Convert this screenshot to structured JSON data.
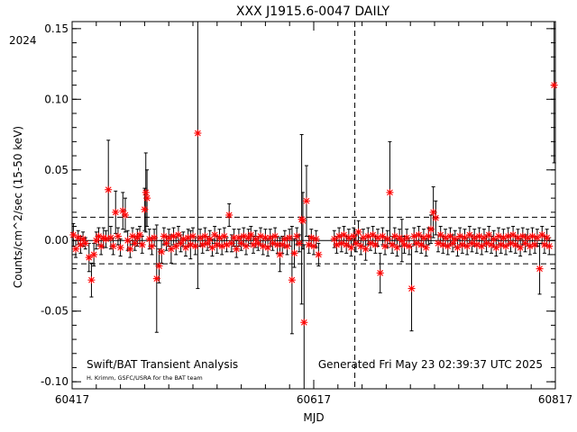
{
  "chart_data": {
    "type": "scatter",
    "title": "XXX J1915.6-0047 DAILY",
    "year_label": "2024",
    "xlabel": "MJD",
    "ylabel": "Counts/cm^2/sec (15-50 keV)",
    "xlim": [
      60417,
      60817
    ],
    "ylim": [
      -0.105,
      0.155
    ],
    "x_ticks": [
      60417,
      60617,
      60817
    ],
    "y_ticks": [
      -0.1,
      -0.05,
      0.0,
      0.05,
      0.1,
      0.15
    ],
    "y_tick_labels": [
      "-0.10",
      "-0.05",
      "0.00",
      "0.05",
      "0.10",
      "0.15"
    ],
    "reference_lines": {
      "zero": 0.0,
      "upper_dashed": 0.0165,
      "lower_dashed": -0.0165,
      "vertical_dashed_mjd": 60651
    },
    "footer_left": "Swift/BAT Transient Analysis",
    "footer_credit": "H. Krimm, GSFC/USRA for the BAT team",
    "footer_right": "Generated Fri May 23 02:39:37 UTC 2025",
    "grid": false,
    "legend": "none",
    "colors": {
      "marker": "#ff0000",
      "errorbar": "#000000",
      "axes": "#000000"
    },
    "series": [
      {
        "marker": "asterisk",
        "points": [
          [
            60418,
            0.004,
            0.008
          ],
          [
            60420,
            -0.006,
            0.006
          ],
          [
            60422,
            0.002,
            0.005
          ],
          [
            60424,
            -0.003,
            0.006
          ],
          [
            60426,
            0.001,
            0.005
          ],
          [
            60428,
            -0.002,
            0.004
          ],
          [
            60431,
            -0.012,
            0.01
          ],
          [
            60433,
            -0.028,
            0.012
          ],
          [
            60435,
            -0.01,
            0.008
          ],
          [
            60437,
            0.0,
            0.006
          ],
          [
            60439,
            0.003,
            0.006
          ],
          [
            60441,
            -0.004,
            0.006
          ],
          [
            60443,
            0.002,
            0.007
          ],
          [
            60445,
            0.001,
            0.006
          ],
          [
            60447,
            0.036,
            0.035
          ],
          [
            60449,
            0.002,
            0.008
          ],
          [
            60451,
            -0.004,
            0.006
          ],
          [
            60453,
            0.02,
            0.015
          ],
          [
            60455,
            0.003,
            0.006
          ],
          [
            60457,
            -0.005,
            0.006
          ],
          [
            60459,
            0.021,
            0.013
          ],
          [
            60461,
            0.018,
            0.012
          ],
          [
            60463,
            0.0,
            0.007
          ],
          [
            60465,
            -0.006,
            0.006
          ],
          [
            60467,
            0.003,
            0.006
          ],
          [
            60469,
            -0.002,
            0.005
          ],
          [
            60471,
            0.002,
            0.006
          ],
          [
            60473,
            0.004,
            0.006
          ],
          [
            60475,
            -0.003,
            0.006
          ],
          [
            60477,
            0.022,
            0.015
          ],
          [
            60478,
            0.034,
            0.028
          ],
          [
            60479,
            0.03,
            0.02
          ],
          [
            60481,
            0.001,
            0.007
          ],
          [
            60483,
            -0.004,
            0.006
          ],
          [
            60485,
            0.002,
            0.006
          ],
          [
            60487,
            -0.027,
            0.038
          ],
          [
            60489,
            -0.018,
            0.012
          ],
          [
            60491,
            -0.008,
            0.008
          ],
          [
            60493,
            0.003,
            0.006
          ],
          [
            60495,
            -0.002,
            0.005
          ],
          [
            60497,
            0.002,
            0.006
          ],
          [
            60499,
            -0.006,
            0.01
          ],
          [
            60501,
            0.003,
            0.006
          ],
          [
            60503,
            -0.004,
            0.006
          ],
          [
            60505,
            0.004,
            0.006
          ],
          [
            60507,
            -0.002,
            0.006
          ],
          [
            60509,
            0.001,
            0.005
          ],
          [
            60511,
            -0.005,
            0.006
          ],
          [
            60513,
            0.002,
            0.006
          ],
          [
            60515,
            -0.003,
            0.01
          ],
          [
            60517,
            0.003,
            0.006
          ],
          [
            60519,
            -0.004,
            0.006
          ],
          [
            60521,
            0.076,
            0.11
          ],
          [
            60523,
            0.002,
            0.006
          ],
          [
            60525,
            -0.003,
            0.006
          ],
          [
            60527,
            0.003,
            0.006
          ],
          [
            60529,
            -0.002,
            0.005
          ],
          [
            60531,
            0.001,
            0.006
          ],
          [
            60533,
            -0.005,
            0.006
          ],
          [
            60535,
            0.004,
            0.006
          ],
          [
            60537,
            -0.003,
            0.006
          ],
          [
            60539,
            0.002,
            0.006
          ],
          [
            60541,
            -0.004,
            0.006
          ],
          [
            60543,
            0.003,
            0.006
          ],
          [
            60545,
            -0.003,
            0.005
          ],
          [
            60547,
            0.018,
            0.008
          ],
          [
            60549,
            -0.002,
            0.006
          ],
          [
            60551,
            0.002,
            0.006
          ],
          [
            60553,
            -0.006,
            0.006
          ],
          [
            60555,
            0.002,
            0.006
          ],
          [
            60557,
            -0.002,
            0.005
          ],
          [
            60559,
            0.003,
            0.006
          ],
          [
            60561,
            -0.004,
            0.006
          ],
          [
            60563,
            0.002,
            0.006
          ],
          [
            60565,
            0.004,
            0.006
          ],
          [
            60567,
            -0.003,
            0.006
          ],
          [
            60569,
            0.001,
            0.006
          ],
          [
            60571,
            -0.002,
            0.005
          ],
          [
            60573,
            0.003,
            0.006
          ],
          [
            60575,
            -0.004,
            0.006
          ],
          [
            60577,
            0.002,
            0.006
          ],
          [
            60579,
            -0.005,
            0.006
          ],
          [
            60581,
            0.002,
            0.006
          ],
          [
            60583,
            -0.002,
            0.005
          ],
          [
            60585,
            0.003,
            0.006
          ],
          [
            60587,
            -0.003,
            0.006
          ],
          [
            60589,
            -0.01,
            0.012
          ],
          [
            60591,
            -0.003,
            0.006
          ],
          [
            60593,
            0.001,
            0.006
          ],
          [
            60595,
            -0.004,
            0.006
          ],
          [
            60597,
            0.002,
            0.006
          ],
          [
            60599,
            -0.028,
            0.038
          ],
          [
            60601,
            -0.009,
            0.01
          ],
          [
            60603,
            0.003,
            0.006
          ],
          [
            60605,
            -0.002,
            0.006
          ],
          [
            60607,
            0.015,
            0.06
          ],
          [
            60608,
            0.014,
            0.02
          ],
          [
            60609,
            -0.058,
            0.055
          ],
          [
            60611,
            0.028,
            0.025
          ],
          [
            60613,
            -0.003,
            0.006
          ],
          [
            60615,
            0.002,
            0.006
          ],
          [
            60617,
            -0.004,
            0.006
          ],
          [
            60619,
            0.001,
            0.006
          ],
          [
            60621,
            -0.01,
            0.008
          ],
          [
            60634,
            0.001,
            0.006
          ],
          [
            60636,
            -0.003,
            0.006
          ],
          [
            60638,
            0.003,
            0.006
          ],
          [
            60640,
            -0.002,
            0.006
          ],
          [
            60642,
            0.004,
            0.006
          ],
          [
            60644,
            -0.003,
            0.006
          ],
          [
            60646,
            0.002,
            0.006
          ],
          [
            60648,
            -0.005,
            0.006
          ],
          [
            60650,
            0.003,
            0.006
          ],
          [
            60652,
            -0.002,
            0.006
          ],
          [
            60654,
            0.006,
            0.008
          ],
          [
            60656,
            -0.004,
            0.006
          ],
          [
            60658,
            0.002,
            0.006
          ],
          [
            60660,
            -0.006,
            0.008
          ],
          [
            60662,
            0.003,
            0.006
          ],
          [
            60664,
            -0.002,
            0.005
          ],
          [
            60666,
            0.004,
            0.006
          ],
          [
            60668,
            -0.003,
            0.006
          ],
          [
            60670,
            0.002,
            0.006
          ],
          [
            60672,
            -0.023,
            0.014
          ],
          [
            60674,
            0.003,
            0.006
          ],
          [
            60676,
            -0.004,
            0.006
          ],
          [
            60678,
            0.001,
            0.006
          ],
          [
            60680,
            0.034,
            0.036
          ],
          [
            60682,
            -0.003,
            0.006
          ],
          [
            60684,
            0.003,
            0.006
          ],
          [
            60686,
            -0.005,
            0.006
          ],
          [
            60688,
            0.002,
            0.006
          ],
          [
            60690,
            0.0,
            0.015
          ],
          [
            60692,
            -0.003,
            0.006
          ],
          [
            60694,
            0.002,
            0.006
          ],
          [
            60696,
            -0.004,
            0.006
          ],
          [
            60698,
            -0.034,
            0.03
          ],
          [
            60700,
            0.003,
            0.006
          ],
          [
            60702,
            -0.002,
            0.006
          ],
          [
            60704,
            0.004,
            0.006
          ],
          [
            60706,
            -0.003,
            0.006
          ],
          [
            60708,
            0.002,
            0.006
          ],
          [
            60710,
            -0.005,
            0.006
          ],
          [
            60712,
            0.003,
            0.006
          ],
          [
            60714,
            0.008,
            0.01
          ],
          [
            60716,
            0.02,
            0.018
          ],
          [
            60718,
            0.016,
            0.012
          ],
          [
            60720,
            -0.002,
            0.006
          ],
          [
            60722,
            0.004,
            0.006
          ],
          [
            60724,
            -0.003,
            0.006
          ],
          [
            60726,
            0.002,
            0.006
          ],
          [
            60728,
            -0.004,
            0.006
          ],
          [
            60730,
            0.003,
            0.006
          ],
          [
            60732,
            -0.002,
            0.006
          ],
          [
            60734,
            0.001,
            0.006
          ],
          [
            60736,
            -0.005,
            0.006
          ],
          [
            60738,
            0.003,
            0.006
          ],
          [
            60740,
            -0.003,
            0.006
          ],
          [
            60742,
            0.002,
            0.006
          ],
          [
            60744,
            -0.004,
            0.006
          ],
          [
            60746,
            0.004,
            0.006
          ],
          [
            60748,
            -0.002,
            0.006
          ],
          [
            60750,
            0.002,
            0.006
          ],
          [
            60752,
            -0.003,
            0.006
          ],
          [
            60754,
            0.003,
            0.006
          ],
          [
            60756,
            -0.004,
            0.006
          ],
          [
            60758,
            0.002,
            0.006
          ],
          [
            60760,
            -0.002,
            0.006
          ],
          [
            60762,
            0.004,
            0.006
          ],
          [
            60764,
            -0.003,
            0.006
          ],
          [
            60766,
            0.001,
            0.006
          ],
          [
            60768,
            -0.005,
            0.006
          ],
          [
            60770,
            0.003,
            0.006
          ],
          [
            60772,
            -0.003,
            0.006
          ],
          [
            60774,
            0.002,
            0.006
          ],
          [
            60776,
            -0.004,
            0.006
          ],
          [
            60778,
            0.003,
            0.006
          ],
          [
            60780,
            -0.002,
            0.006
          ],
          [
            60782,
            0.004,
            0.006
          ],
          [
            60784,
            -0.003,
            0.006
          ],
          [
            60786,
            0.002,
            0.006
          ],
          [
            60788,
            -0.005,
            0.006
          ],
          [
            60790,
            0.003,
            0.006
          ],
          [
            60792,
            -0.002,
            0.006
          ],
          [
            60794,
            0.002,
            0.006
          ],
          [
            60796,
            -0.004,
            0.006
          ],
          [
            60798,
            0.003,
            0.006
          ],
          [
            60800,
            -0.003,
            0.006
          ],
          [
            60802,
            0.002,
            0.006
          ],
          [
            60804,
            -0.02,
            0.018
          ],
          [
            60806,
            0.004,
            0.006
          ],
          [
            60808,
            -0.003,
            0.006
          ],
          [
            60810,
            0.002,
            0.006
          ],
          [
            60812,
            -0.004,
            0.006
          ],
          [
            60816,
            0.11,
            0.055
          ]
        ]
      }
    ]
  }
}
